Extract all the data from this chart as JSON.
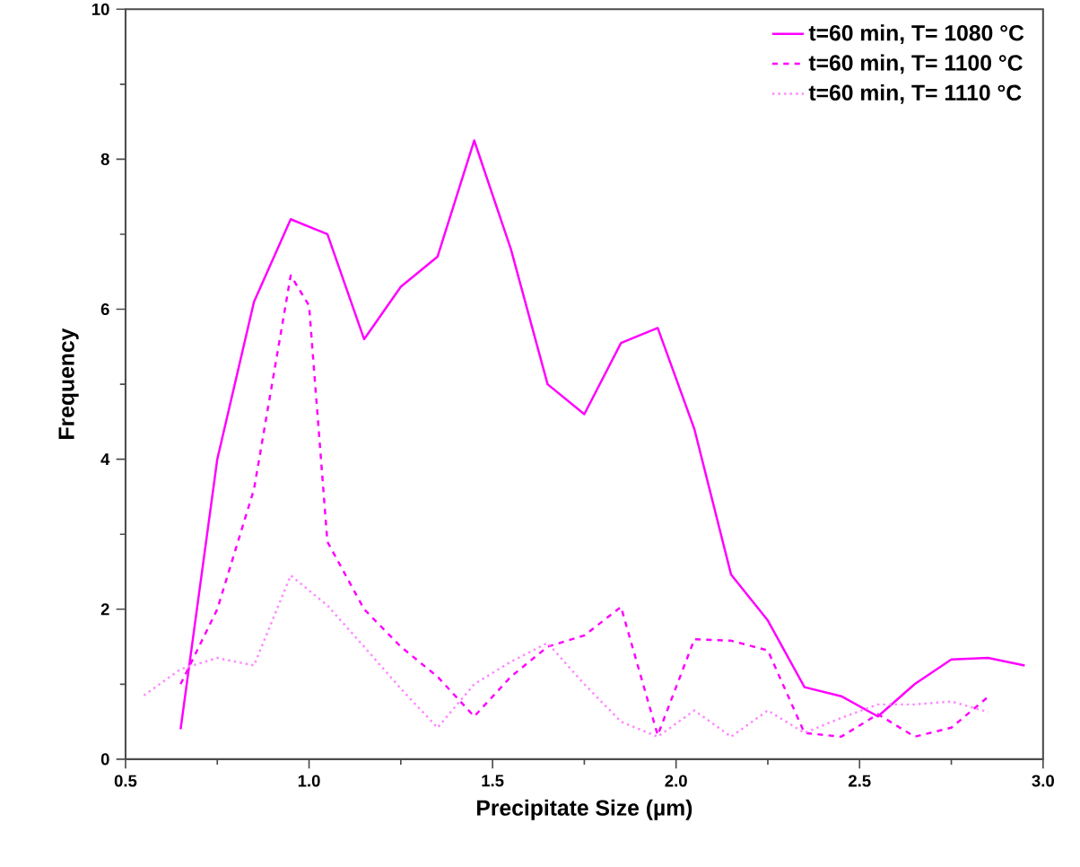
{
  "chart_data": {
    "type": "line",
    "xlabel": "Precipitate Size (µm)",
    "ylabel": "Frequency",
    "xlim": [
      0.5,
      3.0
    ],
    "xticks": [
      {
        "value": 0.5,
        "label": "0.5"
      },
      {
        "value": 1.0,
        "label": "1.0"
      },
      {
        "value": 1.5,
        "label": "1.5"
      },
      {
        "value": 2.0,
        "label": "2.0"
      },
      {
        "value": 2.5,
        "label": "2.5"
      },
      {
        "value": 3.0,
        "label": "3.0"
      }
    ],
    "ylim": [
      0,
      10
    ],
    "yticks": [
      0,
      2,
      4,
      6,
      8,
      10
    ],
    "grid": false,
    "legend": "top right",
    "marker": "none",
    "series": [
      {
        "name": "t=60 min, T= 1080 °C",
        "color": "#ff00ff",
        "line_style": "solid",
        "x": [
          0.65,
          0.75,
          0.85,
          0.95,
          1.05,
          1.15,
          1.25,
          1.35,
          1.45,
          1.55,
          1.65,
          1.75,
          1.85,
          1.95,
          2.05,
          2.15,
          2.25,
          2.35,
          2.45,
          2.55,
          2.65,
          2.75,
          2.85,
          2.95
        ],
        "values": [
          0.4,
          4.0,
          6.1,
          7.2,
          7.0,
          5.6,
          6.3,
          6.7,
          8.25,
          6.8,
          5.0,
          4.6,
          5.55,
          5.75,
          4.4,
          2.46,
          1.85,
          0.96,
          0.84,
          0.57,
          1.0,
          1.33,
          1.35,
          1.25
        ]
      },
      {
        "name": "t=60 min, T= 1100 °C",
        "color": "#ff00ff",
        "line_style": "dashed",
        "x": [
          0.65,
          0.75,
          0.85,
          0.95,
          1.0,
          1.05,
          1.15,
          1.25,
          1.35,
          1.45,
          1.55,
          1.65,
          1.75,
          1.85,
          1.95,
          2.05,
          2.15,
          2.25,
          2.35,
          2.45,
          2.55,
          2.65,
          2.75,
          2.85
        ],
        "values": [
          1.0,
          2.0,
          3.6,
          6.45,
          6.05,
          2.9,
          2.0,
          1.5,
          1.1,
          0.57,
          1.1,
          1.5,
          1.65,
          2.03,
          0.32,
          1.6,
          1.58,
          1.45,
          0.35,
          0.3,
          0.6,
          0.3,
          0.42,
          0.83
        ]
      },
      {
        "name": "t=60 min, T= 1110 °C",
        "color": "#ff88ff",
        "line_style": "dotted",
        "x": [
          0.55,
          0.65,
          0.75,
          0.85,
          0.95,
          1.05,
          1.15,
          1.25,
          1.35,
          1.45,
          1.55,
          1.65,
          1.75,
          1.85,
          1.95,
          2.05,
          2.15,
          2.25,
          2.35,
          2.45,
          2.55,
          2.65,
          2.75,
          2.85
        ],
        "values": [
          0.85,
          1.2,
          1.35,
          1.25,
          2.45,
          2.05,
          1.5,
          0.94,
          0.42,
          1.0,
          1.3,
          1.55,
          1.0,
          0.5,
          0.3,
          0.65,
          0.3,
          0.65,
          0.35,
          0.55,
          0.73,
          0.73,
          0.77,
          0.63
        ]
      }
    ]
  }
}
